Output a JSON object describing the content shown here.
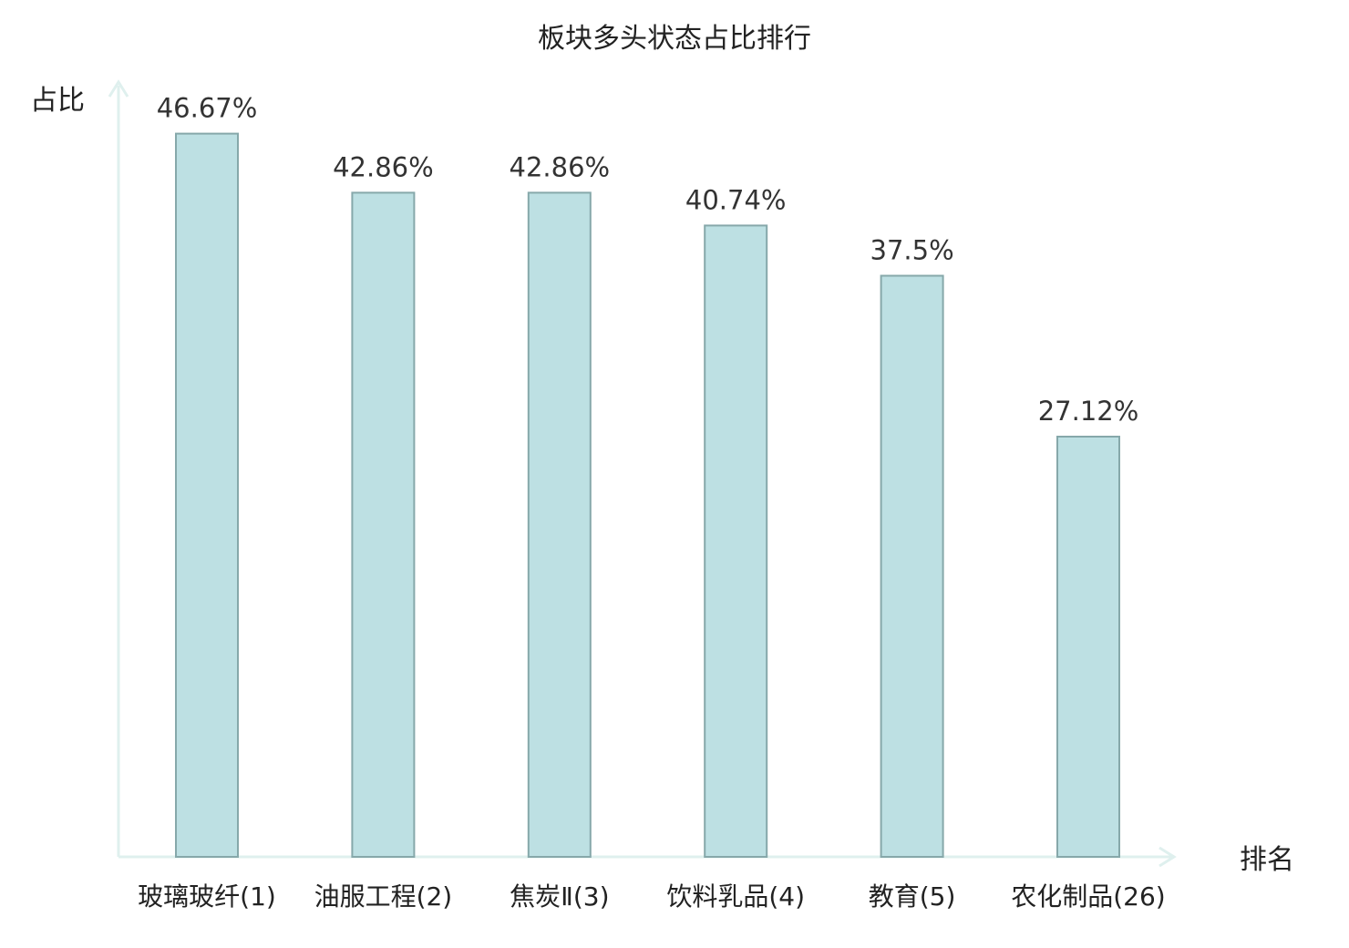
{
  "chart_data": {
    "type": "bar",
    "title": "板块多头状态占比排行",
    "ylabel": "占比",
    "xlabel": "排名",
    "categories": [
      "玻璃玻纤(1)",
      "油服工程(2)",
      "焦炭Ⅱ(3)",
      "饮料乳品(4)",
      "教育(5)",
      "农化制品(26)"
    ],
    "values": [
      46.67,
      42.86,
      42.86,
      40.74,
      37.5,
      27.12
    ],
    "value_labels": [
      "46.67%",
      "42.86%",
      "42.86%",
      "40.74%",
      "37.5%",
      "27.12%"
    ],
    "highlight_index": 5,
    "ylim": [
      0,
      50
    ],
    "grid": false,
    "colors": {
      "bar_fill": "#bde0e3",
      "bar_stroke": "#86a8aa",
      "axis": "#dff0ee",
      "text": "#222222",
      "highlight_text": "#e0141a"
    }
  }
}
